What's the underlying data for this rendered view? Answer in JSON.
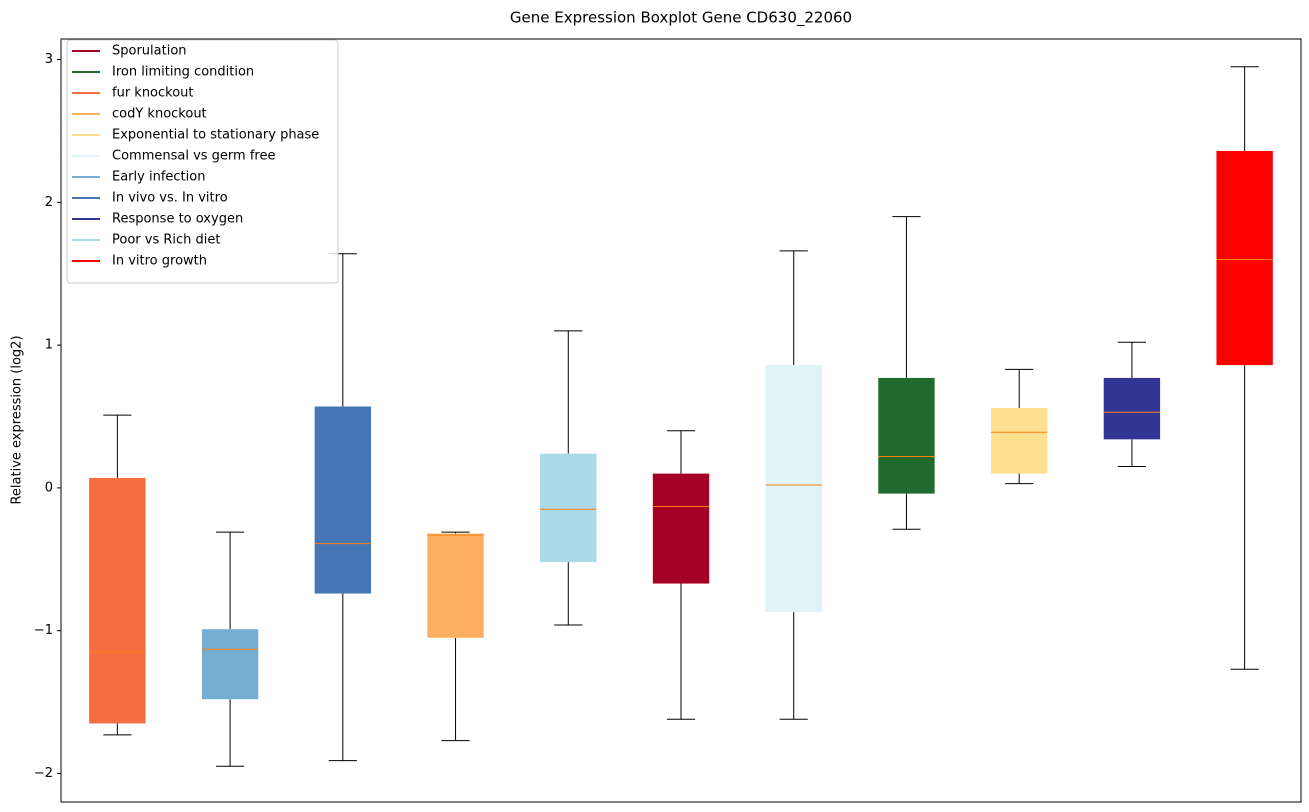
{
  "chart_data": {
    "type": "boxplot",
    "title": "Gene Expression Boxplot Gene CD630_22060",
    "ylabel": "Relative expression (log2)",
    "ylim": [
      -2.2,
      3.144
    ],
    "yticks": [
      {
        "value": -2,
        "label": "−2"
      },
      {
        "value": -1,
        "label": "−1"
      },
      0,
      1,
      2,
      3
    ],
    "xlim": [
      0.5,
      11.5
    ],
    "median_color": "#ff7f0e",
    "legend": "upper left",
    "series": [
      {
        "name": "Sporulation",
        "color": "#a50026",
        "x": 6,
        "whislo": -1.62,
        "q1": -0.67,
        "med": -0.13,
        "q3": 0.1,
        "whishi": 0.4
      },
      {
        "name": "Iron limiting condition",
        "color": "#216a2e",
        "x": 8,
        "whislo": -0.29,
        "q1": -0.04,
        "med": 0.22,
        "q3": 0.77,
        "whishi": 1.9
      },
      {
        "name": "fur knockout",
        "color": "#f46d43",
        "x": 1,
        "whislo": -1.73,
        "q1": -1.65,
        "med": -1.15,
        "q3": 0.07,
        "whishi": 0.51
      },
      {
        "name": "codY knockout",
        "color": "#fdae61",
        "x": 4,
        "whislo": -1.77,
        "q1": -1.05,
        "med": -0.33,
        "q3": -0.32,
        "whishi": -0.31
      },
      {
        "name": "Exponential to stationary phase",
        "color": "#fee090",
        "x": 9,
        "whislo": 0.03,
        "q1": 0.1,
        "med": 0.39,
        "q3": 0.56,
        "whishi": 0.83
      },
      {
        "name": "Commensal vs germ free",
        "color": "#e0f3f8",
        "x": 7,
        "whislo": -1.62,
        "q1": -0.87,
        "med": 0.02,
        "q3": 0.86,
        "whishi": 1.66
      },
      {
        "name": "Early infection",
        "color": "#74add1",
        "x": 2,
        "whislo": -1.95,
        "q1": -1.48,
        "med": -1.13,
        "q3": -0.99,
        "whishi": -0.31
      },
      {
        "name": "In vivo vs. In vitro",
        "color": "#4575b4",
        "x": 3,
        "whislo": -1.91,
        "q1": -0.74,
        "med": -0.39,
        "q3": 0.57,
        "whishi": 1.64
      },
      {
        "name": "Response to oxygen",
        "color": "#313695",
        "x": 10,
        "whislo": 0.15,
        "q1": 0.34,
        "med": 0.53,
        "q3": 0.77,
        "whishi": 1.02
      },
      {
        "name": "Poor vs Rich diet",
        "color": "#abd9e9",
        "x": 5,
        "whislo": -0.96,
        "q1": -0.52,
        "med": -0.15,
        "q3": 0.24,
        "whishi": 1.1
      },
      {
        "name": "In vitro growth",
        "color": "#ff0000",
        "x": 11,
        "whislo": -1.27,
        "q1": 0.86,
        "med": 1.6,
        "q3": 2.36,
        "whishi": 2.95
      }
    ]
  }
}
